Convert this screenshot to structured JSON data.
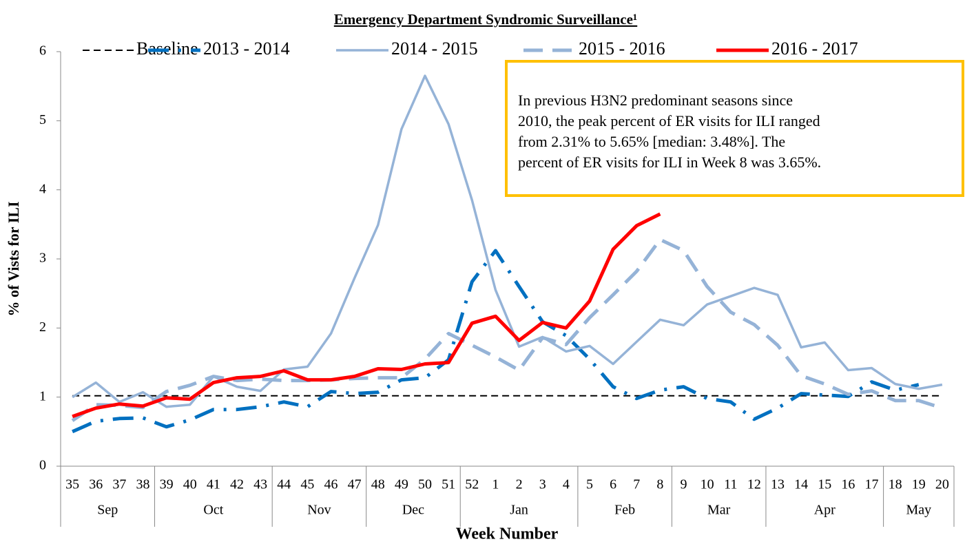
{
  "chart_data": {
    "type": "line",
    "title": "Emergency Department Syndromic Surveillance¹",
    "y_label": "% of Vists for ILI",
    "x_label": "Week Number",
    "annotation": [
      "In previous H3N2 predominant seasons since",
      "2010, the peak percent of ER visits for ILI ranged",
      "from 2.31% to 5.65% [median: 3.48%]. The",
      "percent of ER visits for ILI in Week 8 was 3.65%."
    ],
    "categories": [
      "35",
      "36",
      "37",
      "38",
      "39",
      "40",
      "41",
      "42",
      "43",
      "44",
      "45",
      "46",
      "47",
      "48",
      "49",
      "50",
      "51",
      "52",
      "1",
      "2",
      "3",
      "4",
      "5",
      "6",
      "7",
      "8",
      "9",
      "10",
      "11",
      "12",
      "13",
      "14",
      "15",
      "16",
      "17",
      "18",
      "19",
      "20"
    ],
    "category_groups": [
      {
        "label": "Sep",
        "size": 4
      },
      {
        "label": "Oct",
        "size": 5
      },
      {
        "label": "Nov",
        "size": 4
      },
      {
        "label": "Dec",
        "size": 4
      },
      {
        "label": "Jan",
        "size": 5
      },
      {
        "label": "Feb",
        "size": 4
      },
      {
        "label": "Mar",
        "size": 4
      },
      {
        "label": "Apr",
        "size": 5
      },
      {
        "label": "May",
        "size": 3
      }
    ],
    "ylim": [
      0,
      6
    ],
    "yticks": [
      0,
      1,
      2,
      3,
      4,
      5,
      6
    ],
    "series": [
      {
        "name": "Baseline",
        "color": "#000000",
        "style": "dashed-thin",
        "values": [
          1.02,
          1.02,
          1.02,
          1.02,
          1.02,
          1.02,
          1.02,
          1.02,
          1.02,
          1.02,
          1.02,
          1.02,
          1.02,
          1.02,
          1.02,
          1.02,
          1.02,
          1.02,
          1.02,
          1.02,
          1.02,
          1.02,
          1.02,
          1.02,
          1.02,
          1.02,
          1.02,
          1.02,
          1.02,
          1.02,
          1.02,
          1.02,
          1.02,
          1.02,
          1.02,
          1.02,
          1.02,
          1.02
        ]
      },
      {
        "name": "2013 - 2014",
        "color": "#0070c0",
        "style": "dash-dot",
        "values": [
          0.5,
          0.65,
          0.69,
          0.7,
          0.57,
          0.67,
          0.82,
          0.82,
          0.86,
          0.93,
          0.86,
          1.08,
          1.05,
          1.07,
          1.25,
          1.28,
          1.54,
          2.67,
          3.12,
          2.6,
          2.09,
          1.89,
          1.55,
          1.15,
          0.98,
          1.1,
          1.15,
          0.98,
          0.93,
          0.68,
          0.84,
          1.05,
          1.03,
          1.01,
          1.22,
          1.1,
          1.18,
          null
        ]
      },
      {
        "name": "2014 - 2015",
        "color": "#95b3d7",
        "style": "solid",
        "values": [
          1.0,
          1.21,
          0.93,
          1.07,
          0.86,
          0.89,
          1.3,
          1.15,
          1.09,
          1.4,
          1.44,
          1.92,
          2.72,
          3.49,
          4.88,
          5.65,
          4.95,
          3.85,
          2.55,
          1.73,
          1.87,
          1.66,
          1.74,
          1.48,
          1.8,
          2.12,
          2.04,
          2.34,
          2.46,
          2.58,
          2.48,
          1.72,
          1.79,
          1.39,
          1.42,
          1.19,
          1.12,
          1.18
        ]
      },
      {
        "name": "2015 - 2016",
        "color": "#95b3d7",
        "style": "dashed",
        "values": [
          0.66,
          0.89,
          0.88,
          0.85,
          1.08,
          1.17,
          1.3,
          1.24,
          1.26,
          1.24,
          1.24,
          1.25,
          1.27,
          1.28,
          1.28,
          1.55,
          1.92,
          1.75,
          1.58,
          1.39,
          1.86,
          1.76,
          2.15,
          2.48,
          2.82,
          3.28,
          3.12,
          2.6,
          2.23,
          2.05,
          1.75,
          1.31,
          1.19,
          1.04,
          1.09,
          0.95,
          0.95,
          0.84
        ]
      },
      {
        "name": "2016 - 2017",
        "color": "#ff0000",
        "style": "solid-bold",
        "values": [
          0.72,
          0.84,
          0.9,
          0.87,
          0.99,
          0.97,
          1.21,
          1.28,
          1.3,
          1.38,
          1.25,
          1.25,
          1.3,
          1.41,
          1.4,
          1.48,
          1.5,
          2.07,
          2.17,
          1.82,
          2.08,
          2.0,
          2.39,
          3.14,
          3.48,
          3.65,
          null,
          null,
          null,
          null,
          null,
          null,
          null,
          null,
          null,
          null,
          null,
          null
        ]
      }
    ]
  }
}
